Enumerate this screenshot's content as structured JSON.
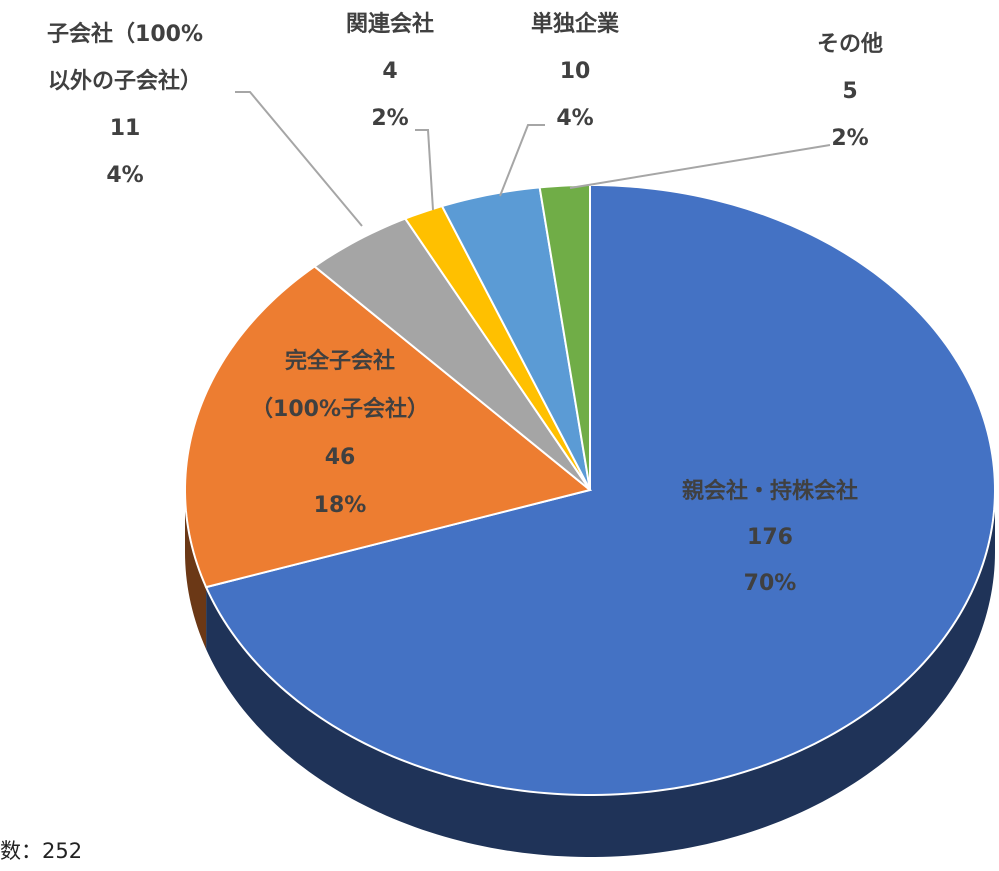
{
  "chart_data": {
    "type": "pie3d",
    "categories": [
      [
        "親会社・持株会社"
      ],
      [
        "完全子会社",
        "（100%子会社）"
      ],
      [
        "子会社（100%",
        "以外の子会社）"
      ],
      [
        "関連会社"
      ],
      [
        "単独企業"
      ],
      [
        "その他"
      ]
    ],
    "values": [
      176,
      46,
      11,
      4,
      10,
      5
    ],
    "percents": [
      {
        "value": 70,
        "label": "70%"
      },
      {
        "value": 18,
        "label": "18%"
      },
      {
        "value": 4,
        "label": "4%"
      },
      {
        "value": 2,
        "label": "2%"
      },
      {
        "value": 4,
        "label": "4%"
      },
      {
        "value": 2,
        "label": "2%"
      }
    ],
    "colors": [
      "#4472c4",
      "#ed7d31",
      "#a5a5a5",
      "#ffc000",
      "#5b9bd5",
      "#70ad47"
    ],
    "note": "数：252"
  }
}
